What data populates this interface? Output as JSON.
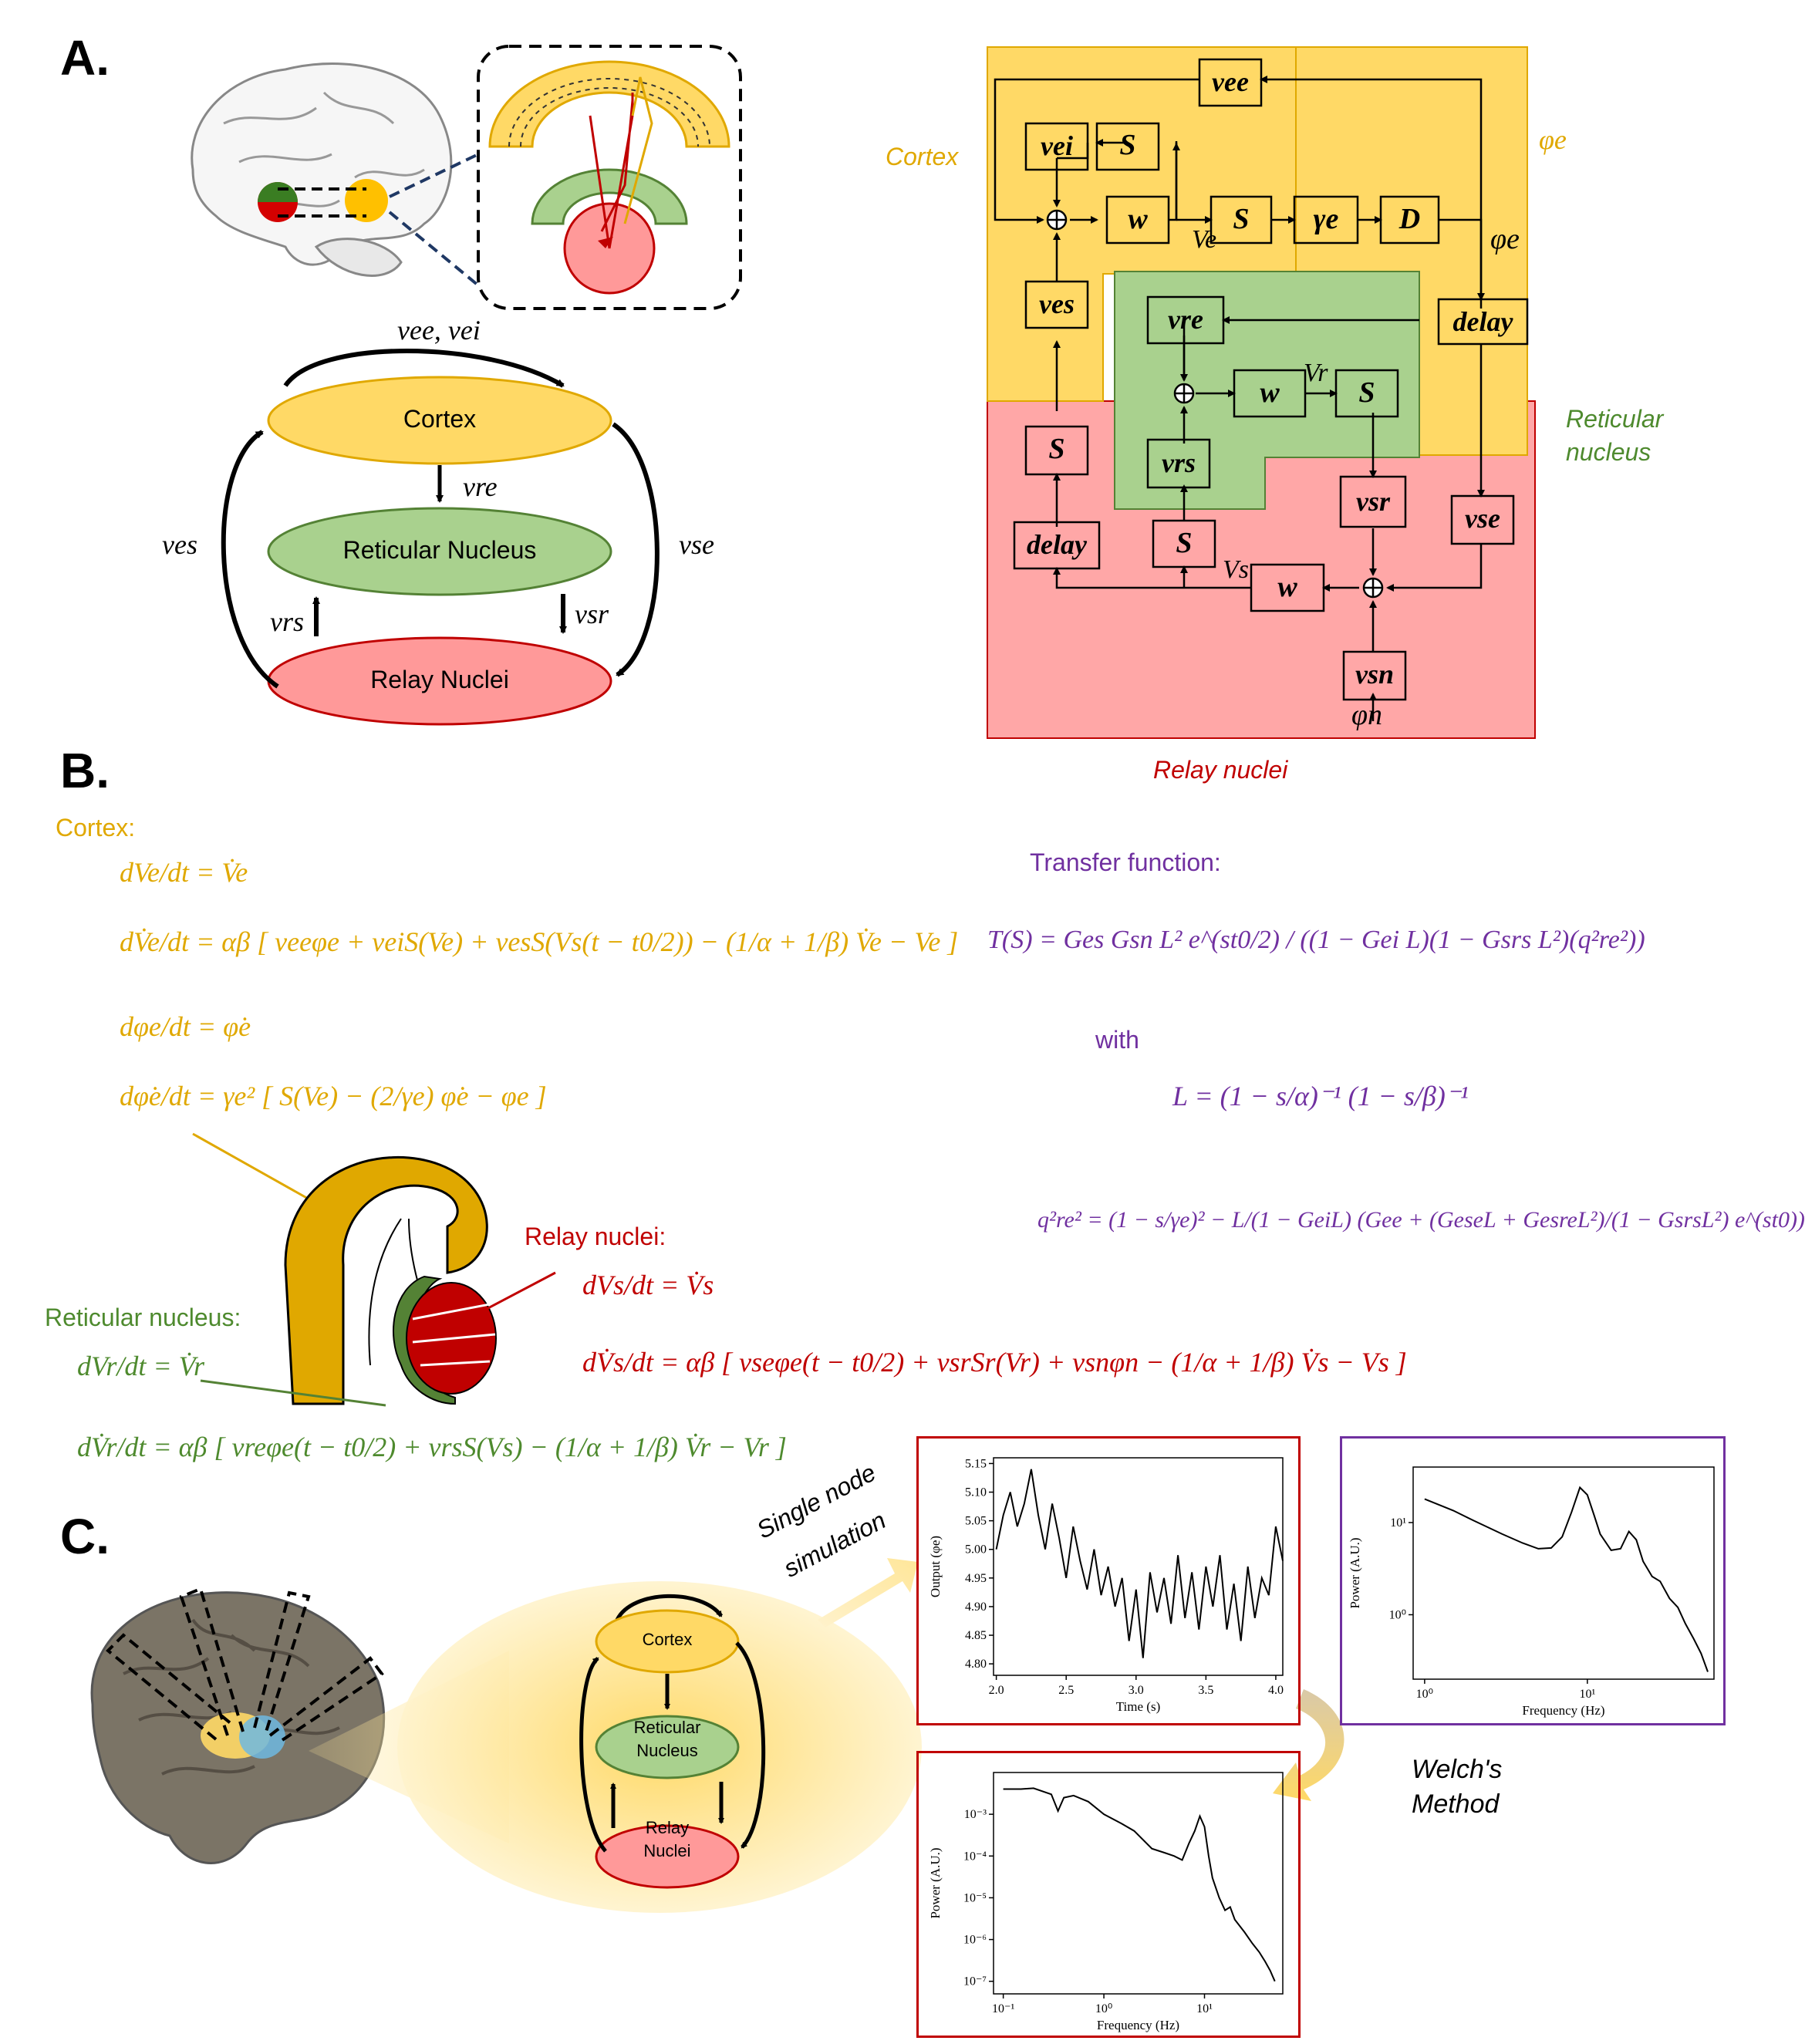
{
  "panels": {
    "a": "A.",
    "b": "B.",
    "c": "C."
  },
  "panel_a_left": {
    "cortex": "Cortex",
    "reticular": "Reticular Nucleus",
    "relay": "Relay Nuclei",
    "label_top": "νee, νei",
    "label_re": "νre",
    "label_es": "νes",
    "label_se": "νse",
    "label_rs": "νrs",
    "label_sr": "νsr"
  },
  "block_diagram": {
    "region_cortex": "Cortex",
    "region_reticular_1": "Reticular",
    "region_reticular_2": "nucleus",
    "region_relay": "Relay nuclei",
    "phi_e_top": "φe",
    "phi_e_mid": "φe",
    "phi_n": "φn",
    "V_e": "Ve",
    "V_r": "Vr",
    "V_s": "Vs",
    "blocks": {
      "vee": "vee",
      "vei": "vei",
      "S1": "S",
      "w1": "w",
      "S2": "S",
      "gamma": "γe",
      "D": "D",
      "ves": "ves",
      "delay1": "delay",
      "vre": "vre",
      "w2": "w",
      "S3": "S",
      "vrs": "vrs",
      "S4": "S",
      "S5": "S",
      "delay2": "delay",
      "vsr": "vsr",
      "vse": "vse",
      "w3": "w",
      "vsn": "vsn"
    }
  },
  "panel_b": {
    "cortex_label": "Cortex:",
    "reticular_label": "Reticular nucleus:",
    "relay_label": "Relay nuclei:",
    "transfer_label": "Transfer function:",
    "with_label": "with",
    "eq_cortex_1": "dVe/dt = V̇e",
    "eq_cortex_2": "dV̇e/dt = αβ [ veeφe + veiS(Ve) + vesS(Vs(t − t0/2)) − (1/α + 1/β) V̇e − Ve ]",
    "eq_cortex_3": "dφe/dt = φ̇e",
    "eq_cortex_4": "dφ̇e/dt = γe² [ S(Ve) − (2/γe) φ̇e − φe ]",
    "eq_relay_1": "dVs/dt = V̇s",
    "eq_relay_2": "dV̇s/dt = αβ [ vseφe(t − t0/2) + vsrSr(Vr) + vsnφn − (1/α + 1/β) V̇s − Vs ]",
    "eq_ret_1": "dVr/dt = V̇r",
    "eq_ret_2": "dV̇r/dt = αβ [ vreφe(t − t0/2) + vrsS(Vs) − (1/α + 1/β) V̇r − Vr ]",
    "eq_transfer": "T(S) = Ges Gsn L² e^(st0/2) / ((1 − Gei L)(1 − Gsrs L²)(q²re²))",
    "eq_L": "L = (1 − s/α)⁻¹ (1 − s/β)⁻¹",
    "eq_q": "q²re² = (1 − s/γe)² − L/(1 − GeiL) (Gee + (GeseL + GesreL²)/(1 − GsrsL²) e^(st0))"
  },
  "panel_c": {
    "cortex": "Cortex",
    "reticular_1": "Reticular",
    "reticular_2": "Nucleus",
    "relay_1": "Relay",
    "relay_2": "Nuclei",
    "single_node_1": "Single node",
    "single_node_2": "simulation",
    "welch_1": "Welch's",
    "welch_2": "Method"
  },
  "chart_data": [
    {
      "type": "line",
      "xlabel": "Time (s)",
      "ylabel": "Output (φe)",
      "xlim": [
        1.98,
        4.05
      ],
      "ylim": [
        4.78,
        5.16
      ],
      "xticks": [
        "2.0",
        "2.5",
        "3.0",
        "3.5",
        "4.0"
      ],
      "yticks": [
        "4.80",
        "4.85",
        "4.90",
        "4.95",
        "5.00",
        "5.05",
        "5.10",
        "5.15"
      ],
      "x": [
        2.0,
        2.05,
        2.1,
        2.15,
        2.2,
        2.25,
        2.3,
        2.35,
        2.4,
        2.45,
        2.5,
        2.55,
        2.6,
        2.65,
        2.7,
        2.75,
        2.8,
        2.85,
        2.9,
        2.95,
        3.0,
        3.05,
        3.1,
        3.15,
        3.2,
        3.25,
        3.3,
        3.35,
        3.4,
        3.45,
        3.5,
        3.55,
        3.6,
        3.65,
        3.7,
        3.75,
        3.8,
        3.85,
        3.9,
        3.95,
        4.0,
        4.05
      ],
      "y": [
        5.0,
        5.06,
        5.1,
        5.04,
        5.08,
        5.14,
        5.06,
        5.0,
        5.08,
        5.02,
        4.95,
        5.04,
        4.98,
        4.93,
        5.0,
        4.92,
        4.97,
        4.9,
        4.95,
        4.84,
        4.93,
        4.81,
        4.96,
        4.89,
        4.95,
        4.87,
        4.99,
        4.88,
        4.96,
        4.86,
        4.97,
        4.9,
        4.99,
        4.86,
        4.94,
        4.84,
        4.97,
        4.88,
        4.95,
        4.92,
        5.04,
        4.98
      ]
    },
    {
      "type": "line",
      "xlabel": "Frequency (Hz)",
      "ylabel": "Power (A.U.)",
      "xscale": "log",
      "yscale": "log",
      "xlim": [
        0.85,
        60
      ],
      "ylim": [
        0.2,
        40
      ],
      "xticks": [
        "10⁰",
        "10¹"
      ],
      "yticks": [
        "10⁰",
        "10¹"
      ],
      "x": [
        1.0,
        1.5,
        2.0,
        3.0,
        4.0,
        5.0,
        6.0,
        7.0,
        8.0,
        9.0,
        10.0,
        11.0,
        12.0,
        14.0,
        16.0,
        18.0,
        20.0,
        22.0,
        25.0,
        28.0,
        32.0,
        36.0,
        40.0,
        45.0,
        50.0,
        55.0
      ],
      "y": [
        18.0,
        13.5,
        10.5,
        7.5,
        6.0,
        5.2,
        5.3,
        7.0,
        13.0,
        24.0,
        20.0,
        12.0,
        7.5,
        5.0,
        5.2,
        8.0,
        6.5,
        3.8,
        2.6,
        2.3,
        1.5,
        1.2,
        0.8,
        0.55,
        0.38,
        0.24
      ]
    },
    {
      "type": "line",
      "xlabel": "Frequency (Hz)",
      "ylabel": "Power (A.U.)",
      "xscale": "log",
      "yscale": "log",
      "xlim": [
        0.08,
        60
      ],
      "ylim": [
        5e-08,
        0.01
      ],
      "xticks": [
        "10⁻¹",
        "10⁰",
        "10¹"
      ],
      "yticks": [
        "10⁻⁷",
        "10⁻⁶",
        "10⁻⁵",
        "10⁻⁴",
        "10⁻³"
      ],
      "x": [
        0.1,
        0.15,
        0.2,
        0.3,
        0.35,
        0.4,
        0.5,
        0.7,
        1.0,
        1.5,
        2.0,
        3.0,
        4.0,
        5.0,
        6.0,
        7.0,
        8.0,
        9.0,
        10.0,
        11.0,
        12.0,
        14.0,
        16.0,
        18.0,
        20.0,
        25.0,
        30.0,
        35.0,
        40.0,
        45.0,
        50.0
      ],
      "y": [
        0.004,
        0.004,
        0.0042,
        0.003,
        0.0012,
        0.0025,
        0.0028,
        0.002,
        0.001,
        0.0006,
        0.0004,
        0.00015,
        0.00012,
        0.0001,
        8e-05,
        0.0002,
        0.0004,
        0.0009,
        0.0005,
        0.0001,
        3e-05,
        1e-05,
        5e-06,
        6e-06,
        3e-06,
        1.5e-06,
        8e-07,
        5e-07,
        3e-07,
        1.8e-07,
        1e-07
      ]
    }
  ]
}
